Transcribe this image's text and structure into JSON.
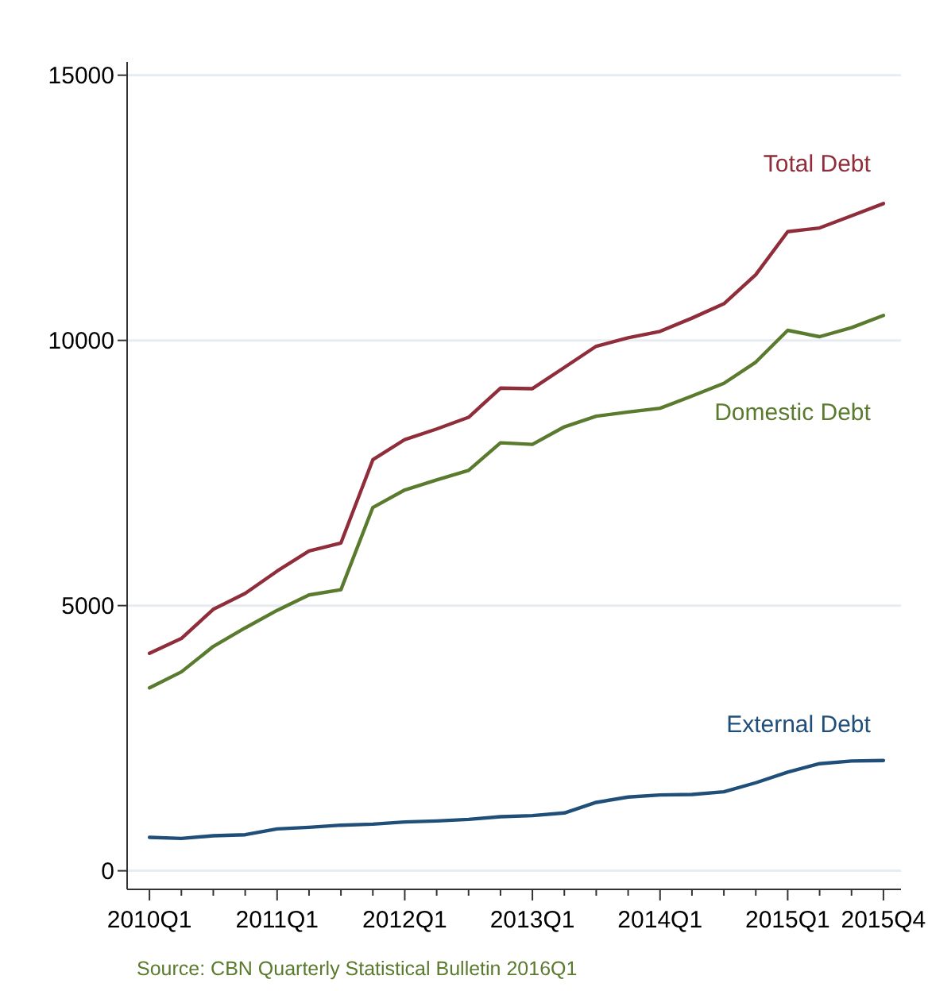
{
  "chart_data": {
    "type": "line",
    "categories": [
      "2010Q1",
      null,
      null,
      null,
      "2011Q1",
      null,
      null,
      null,
      "2012Q1",
      null,
      null,
      null,
      "2013Q1",
      null,
      null,
      null,
      "2014Q1",
      null,
      null,
      null,
      "2015Q1",
      null,
      null,
      "2015Q4"
    ],
    "series": [
      {
        "name": "Total Debt",
        "color": "#8f2d3a",
        "values": [
          4100,
          4380,
          4930,
          5230,
          5650,
          6030,
          6180,
          7750,
          8130,
          8330,
          8550,
          9100,
          9090,
          9490,
          9890,
          10050,
          10170,
          10420,
          10690,
          11240,
          12050,
          12120,
          12350,
          12580
        ]
      },
      {
        "name": "Domestic Debt",
        "color": "#5a7a2e",
        "values": [
          3450,
          3750,
          4230,
          4580,
          4910,
          5200,
          5300,
          6850,
          7180,
          7370,
          7550,
          8070,
          8040,
          8370,
          8570,
          8650,
          8720,
          8950,
          9190,
          9590,
          10190,
          10070,
          10240,
          10470
        ]
      },
      {
        "name": "External Debt",
        "color": "#1f4e79",
        "values": [
          630,
          610,
          660,
          680,
          790,
          820,
          860,
          880,
          920,
          940,
          970,
          1020,
          1040,
          1090,
          1290,
          1390,
          1430,
          1440,
          1490,
          1660,
          1860,
          2020,
          2070,
          2080
        ]
      }
    ],
    "ylim": [
      -350,
      15250
    ],
    "yticks": [
      0,
      5000,
      10000,
      15000
    ],
    "grid": "y",
    "line_style": "solid",
    "marker": "none",
    "annotations": [
      "Source: CBN Quarterly Statistical Bulletin 2016Q1"
    ]
  }
}
